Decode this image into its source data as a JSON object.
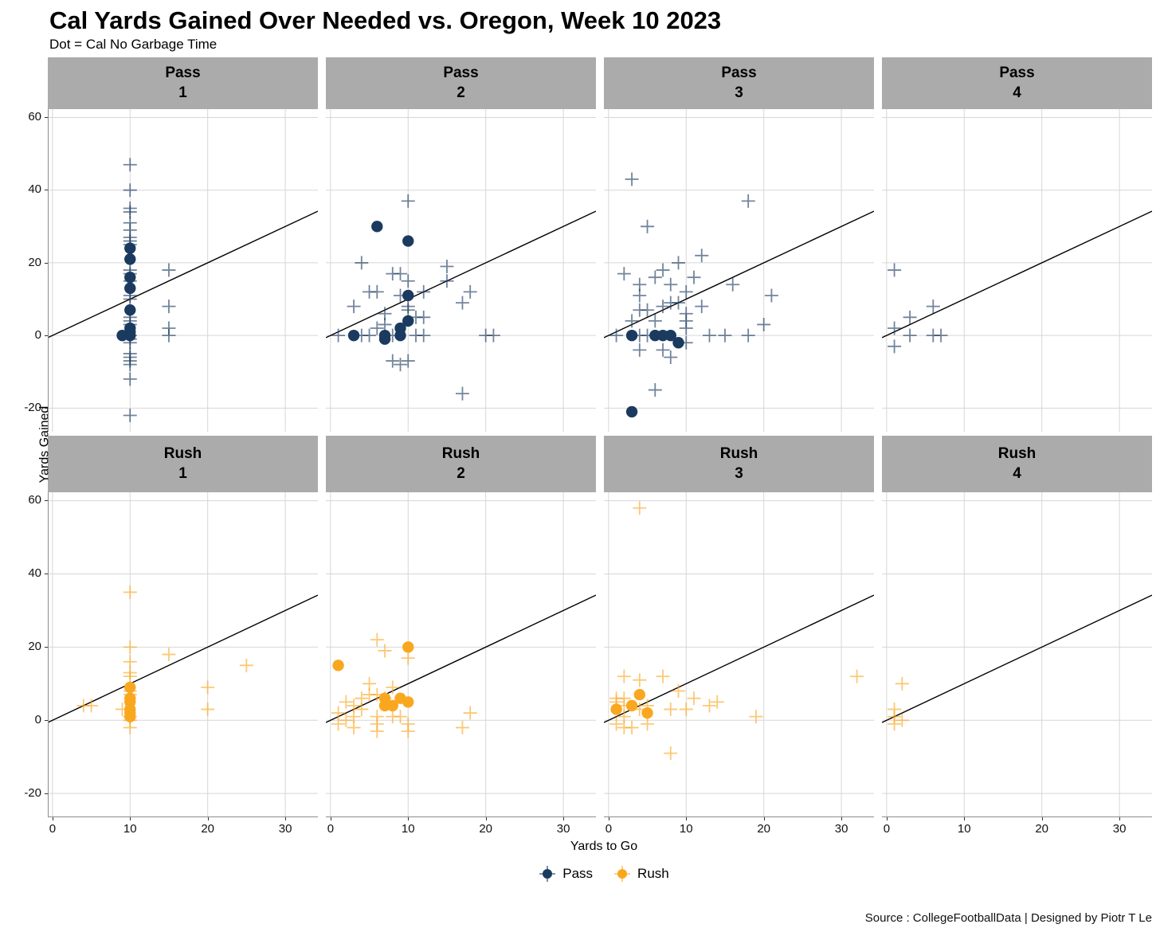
{
  "title": "Cal Yards Gained Over Needed vs. Oregon, Week 10 2023",
  "subtitle": "Dot = Cal No Garbage Time",
  "source": "Source : CollegeFootballData | Designed by Piotr T Le",
  "colors": {
    "pass": "#1B3A5F",
    "rush": "#FAA720",
    "strip_bg": "#ABABAB",
    "grid": "#D6D6D6",
    "axis": "#8C8C8C",
    "tick": "#333333",
    "ref_line": "#000000"
  },
  "legend": [
    {
      "label": "Pass",
      "color_key": "pass"
    },
    {
      "label": "Rush",
      "color_key": "rush"
    }
  ],
  "chart_data": {
    "type": "scatter",
    "title": "Cal Yards Gained Over Needed vs. Oregon, Week 10 2023",
    "subtitle": "Dot = Cal No Garbage Time",
    "xlabel": "Yards to Go",
    "ylabel": "Yards Gained",
    "x_ticks": [
      0,
      10,
      20,
      30
    ],
    "y_ticks": [
      60,
      40,
      20,
      0,
      -20
    ],
    "x_domain": [
      -0.6,
      34.2
    ],
    "y_domain": [
      -26.5,
      62.3
    ],
    "reference_line": "y = x (yards gained equals yards to go)",
    "marker_note": "cross = all plays, dot = Cal no garbage time",
    "facets": [
      {
        "row_label": "Pass",
        "col_label": "1",
        "color_key": "pass",
        "crosses": [
          [
            10,
            47
          ],
          [
            10,
            40
          ],
          [
            10,
            35
          ],
          [
            10,
            34
          ],
          [
            10,
            31
          ],
          [
            10,
            29
          ],
          [
            10,
            27
          ],
          [
            10,
            26
          ],
          [
            10,
            25
          ],
          [
            15,
            18
          ],
          [
            10,
            18
          ],
          [
            10,
            17
          ],
          [
            10,
            15
          ],
          [
            10,
            11
          ],
          [
            10,
            10
          ],
          [
            15,
            8
          ],
          [
            10,
            5
          ],
          [
            10,
            4
          ],
          [
            10,
            3
          ],
          [
            15,
            2
          ],
          [
            10,
            0
          ],
          [
            15,
            0
          ],
          [
            10,
            -1
          ],
          [
            10,
            -2
          ],
          [
            10,
            -5
          ],
          [
            10,
            -6
          ],
          [
            10,
            -7
          ],
          [
            10,
            -8
          ],
          [
            10,
            -12
          ],
          [
            10,
            -22
          ]
        ],
        "dots": [
          [
            10,
            24
          ],
          [
            10,
            21
          ],
          [
            10,
            16
          ],
          [
            10,
            13
          ],
          [
            10,
            7
          ],
          [
            10,
            2
          ],
          [
            10,
            1
          ],
          [
            10,
            0
          ],
          [
            9,
            0
          ]
        ]
      },
      {
        "row_label": "Pass",
        "col_label": "2",
        "color_key": "pass",
        "crosses": [
          [
            10,
            37
          ],
          [
            4,
            20
          ],
          [
            15,
            19
          ],
          [
            8,
            17
          ],
          [
            9,
            17
          ],
          [
            10,
            15
          ],
          [
            15,
            15
          ],
          [
            5,
            12
          ],
          [
            6,
            12
          ],
          [
            12,
            12
          ],
          [
            18,
            12
          ],
          [
            9,
            11
          ],
          [
            3,
            8
          ],
          [
            10,
            8
          ],
          [
            17,
            9
          ],
          [
            10,
            7
          ],
          [
            7,
            6
          ],
          [
            11,
            5
          ],
          [
            12,
            5
          ],
          [
            7,
            3
          ],
          [
            6,
            2
          ],
          [
            1,
            0
          ],
          [
            4,
            0
          ],
          [
            5,
            0
          ],
          [
            8,
            0
          ],
          [
            11,
            0
          ],
          [
            12,
            0
          ],
          [
            20,
            0
          ],
          [
            21,
            0
          ],
          [
            8,
            -7
          ],
          [
            10,
            -7
          ],
          [
            9,
            -8
          ],
          [
            17,
            -16
          ]
        ],
        "dots": [
          [
            6,
            30
          ],
          [
            10,
            26
          ],
          [
            10,
            11
          ],
          [
            10,
            4
          ],
          [
            9,
            2
          ],
          [
            3,
            0
          ],
          [
            7,
            0
          ],
          [
            7,
            -1
          ],
          [
            9,
            0
          ]
        ]
      },
      {
        "row_label": "Pass",
        "col_label": "3",
        "color_key": "pass",
        "crosses": [
          [
            3,
            43
          ],
          [
            18,
            37
          ],
          [
            5,
            30
          ],
          [
            12,
            22
          ],
          [
            9,
            20
          ],
          [
            7,
            18
          ],
          [
            2,
            17
          ],
          [
            6,
            16
          ],
          [
            11,
            16
          ],
          [
            4,
            14
          ],
          [
            8,
            14
          ],
          [
            16,
            14
          ],
          [
            10,
            12
          ],
          [
            4,
            11
          ],
          [
            21,
            11
          ],
          [
            8,
            9
          ],
          [
            9,
            9
          ],
          [
            7,
            8
          ],
          [
            12,
            8
          ],
          [
            4,
            7
          ],
          [
            5,
            7
          ],
          [
            10,
            6
          ],
          [
            3,
            4
          ],
          [
            6,
            4
          ],
          [
            10,
            4
          ],
          [
            20,
            3
          ],
          [
            10,
            2
          ],
          [
            1,
            0
          ],
          [
            4,
            0
          ],
          [
            5,
            0
          ],
          [
            13,
            0
          ],
          [
            15,
            0
          ],
          [
            18,
            0
          ],
          [
            10,
            -2
          ],
          [
            4,
            -4
          ],
          [
            7,
            -4
          ],
          [
            8,
            -6
          ],
          [
            6,
            -15
          ]
        ],
        "dots": [
          [
            3,
            0
          ],
          [
            6,
            0
          ],
          [
            7,
            0
          ],
          [
            8,
            0
          ],
          [
            9,
            -2
          ],
          [
            3,
            -21
          ]
        ]
      },
      {
        "row_label": "Pass",
        "col_label": "4",
        "color_key": "pass",
        "crosses": [
          [
            1,
            18
          ],
          [
            6,
            8
          ],
          [
            3,
            5
          ],
          [
            1,
            2
          ],
          [
            3,
            0
          ],
          [
            6,
            0
          ],
          [
            7,
            0
          ],
          [
            1,
            -3
          ]
        ],
        "dots": []
      },
      {
        "row_label": "Rush",
        "col_label": "1",
        "color_key": "rush",
        "crosses": [
          [
            10,
            35
          ],
          [
            10,
            20
          ],
          [
            15,
            18
          ],
          [
            10,
            16
          ],
          [
            25,
            15
          ],
          [
            10,
            13
          ],
          [
            10,
            12
          ],
          [
            20,
            9
          ],
          [
            10,
            8
          ],
          [
            10,
            7
          ],
          [
            4,
            4
          ],
          [
            5,
            4
          ],
          [
            9,
            3
          ],
          [
            20,
            3
          ],
          [
            10,
            1
          ],
          [
            10,
            0
          ],
          [
            10,
            -2
          ]
        ],
        "dots": [
          [
            10,
            9
          ],
          [
            10,
            6
          ],
          [
            10,
            5
          ],
          [
            10,
            3
          ],
          [
            10,
            2
          ],
          [
            10,
            1
          ]
        ]
      },
      {
        "row_label": "Rush",
        "col_label": "2",
        "color_key": "rush",
        "crosses": [
          [
            6,
            22
          ],
          [
            7,
            19
          ],
          [
            10,
            17
          ],
          [
            5,
            10
          ],
          [
            8,
            9
          ],
          [
            2,
            5
          ],
          [
            4,
            6
          ],
          [
            5,
            7
          ],
          [
            6,
            7
          ],
          [
            7,
            6
          ],
          [
            3,
            4
          ],
          [
            4,
            3
          ],
          [
            1,
            2
          ],
          [
            18,
            2
          ],
          [
            3,
            1
          ],
          [
            6,
            1
          ],
          [
            8,
            1
          ],
          [
            9,
            1
          ],
          [
            2,
            0
          ],
          [
            1,
            -1
          ],
          [
            6,
            -1
          ],
          [
            10,
            -1
          ],
          [
            3,
            -2
          ],
          [
            17,
            -2
          ],
          [
            6,
            -3
          ],
          [
            10,
            -3
          ]
        ],
        "dots": [
          [
            10,
            20
          ],
          [
            1,
            15
          ],
          [
            7,
            6
          ],
          [
            9,
            6
          ],
          [
            7,
            4
          ],
          [
            8,
            4
          ],
          [
            10,
            5
          ]
        ]
      },
      {
        "row_label": "Rush",
        "col_label": "3",
        "color_key": "rush",
        "crosses": [
          [
            4,
            58
          ],
          [
            2,
            12
          ],
          [
            7,
            12
          ],
          [
            32,
            12
          ],
          [
            4,
            11
          ],
          [
            9,
            8
          ],
          [
            1,
            6
          ],
          [
            2,
            6
          ],
          [
            11,
            6
          ],
          [
            1,
            5
          ],
          [
            14,
            5
          ],
          [
            2,
            4
          ],
          [
            5,
            4
          ],
          [
            13,
            4
          ],
          [
            4,
            3
          ],
          [
            8,
            3
          ],
          [
            10,
            3
          ],
          [
            2,
            1
          ],
          [
            19,
            1
          ],
          [
            1,
            -1
          ],
          [
            5,
            -1
          ],
          [
            2,
            -2
          ],
          [
            3,
            -2
          ],
          [
            8,
            -9
          ]
        ],
        "dots": [
          [
            1,
            3
          ],
          [
            3,
            4
          ],
          [
            4,
            7
          ],
          [
            5,
            2
          ]
        ]
      },
      {
        "row_label": "Rush",
        "col_label": "4",
        "color_key": "rush",
        "crosses": [
          [
            2,
            10
          ],
          [
            1,
            3
          ],
          [
            1,
            1
          ],
          [
            2,
            0
          ],
          [
            1,
            -1
          ]
        ],
        "dots": []
      }
    ]
  }
}
